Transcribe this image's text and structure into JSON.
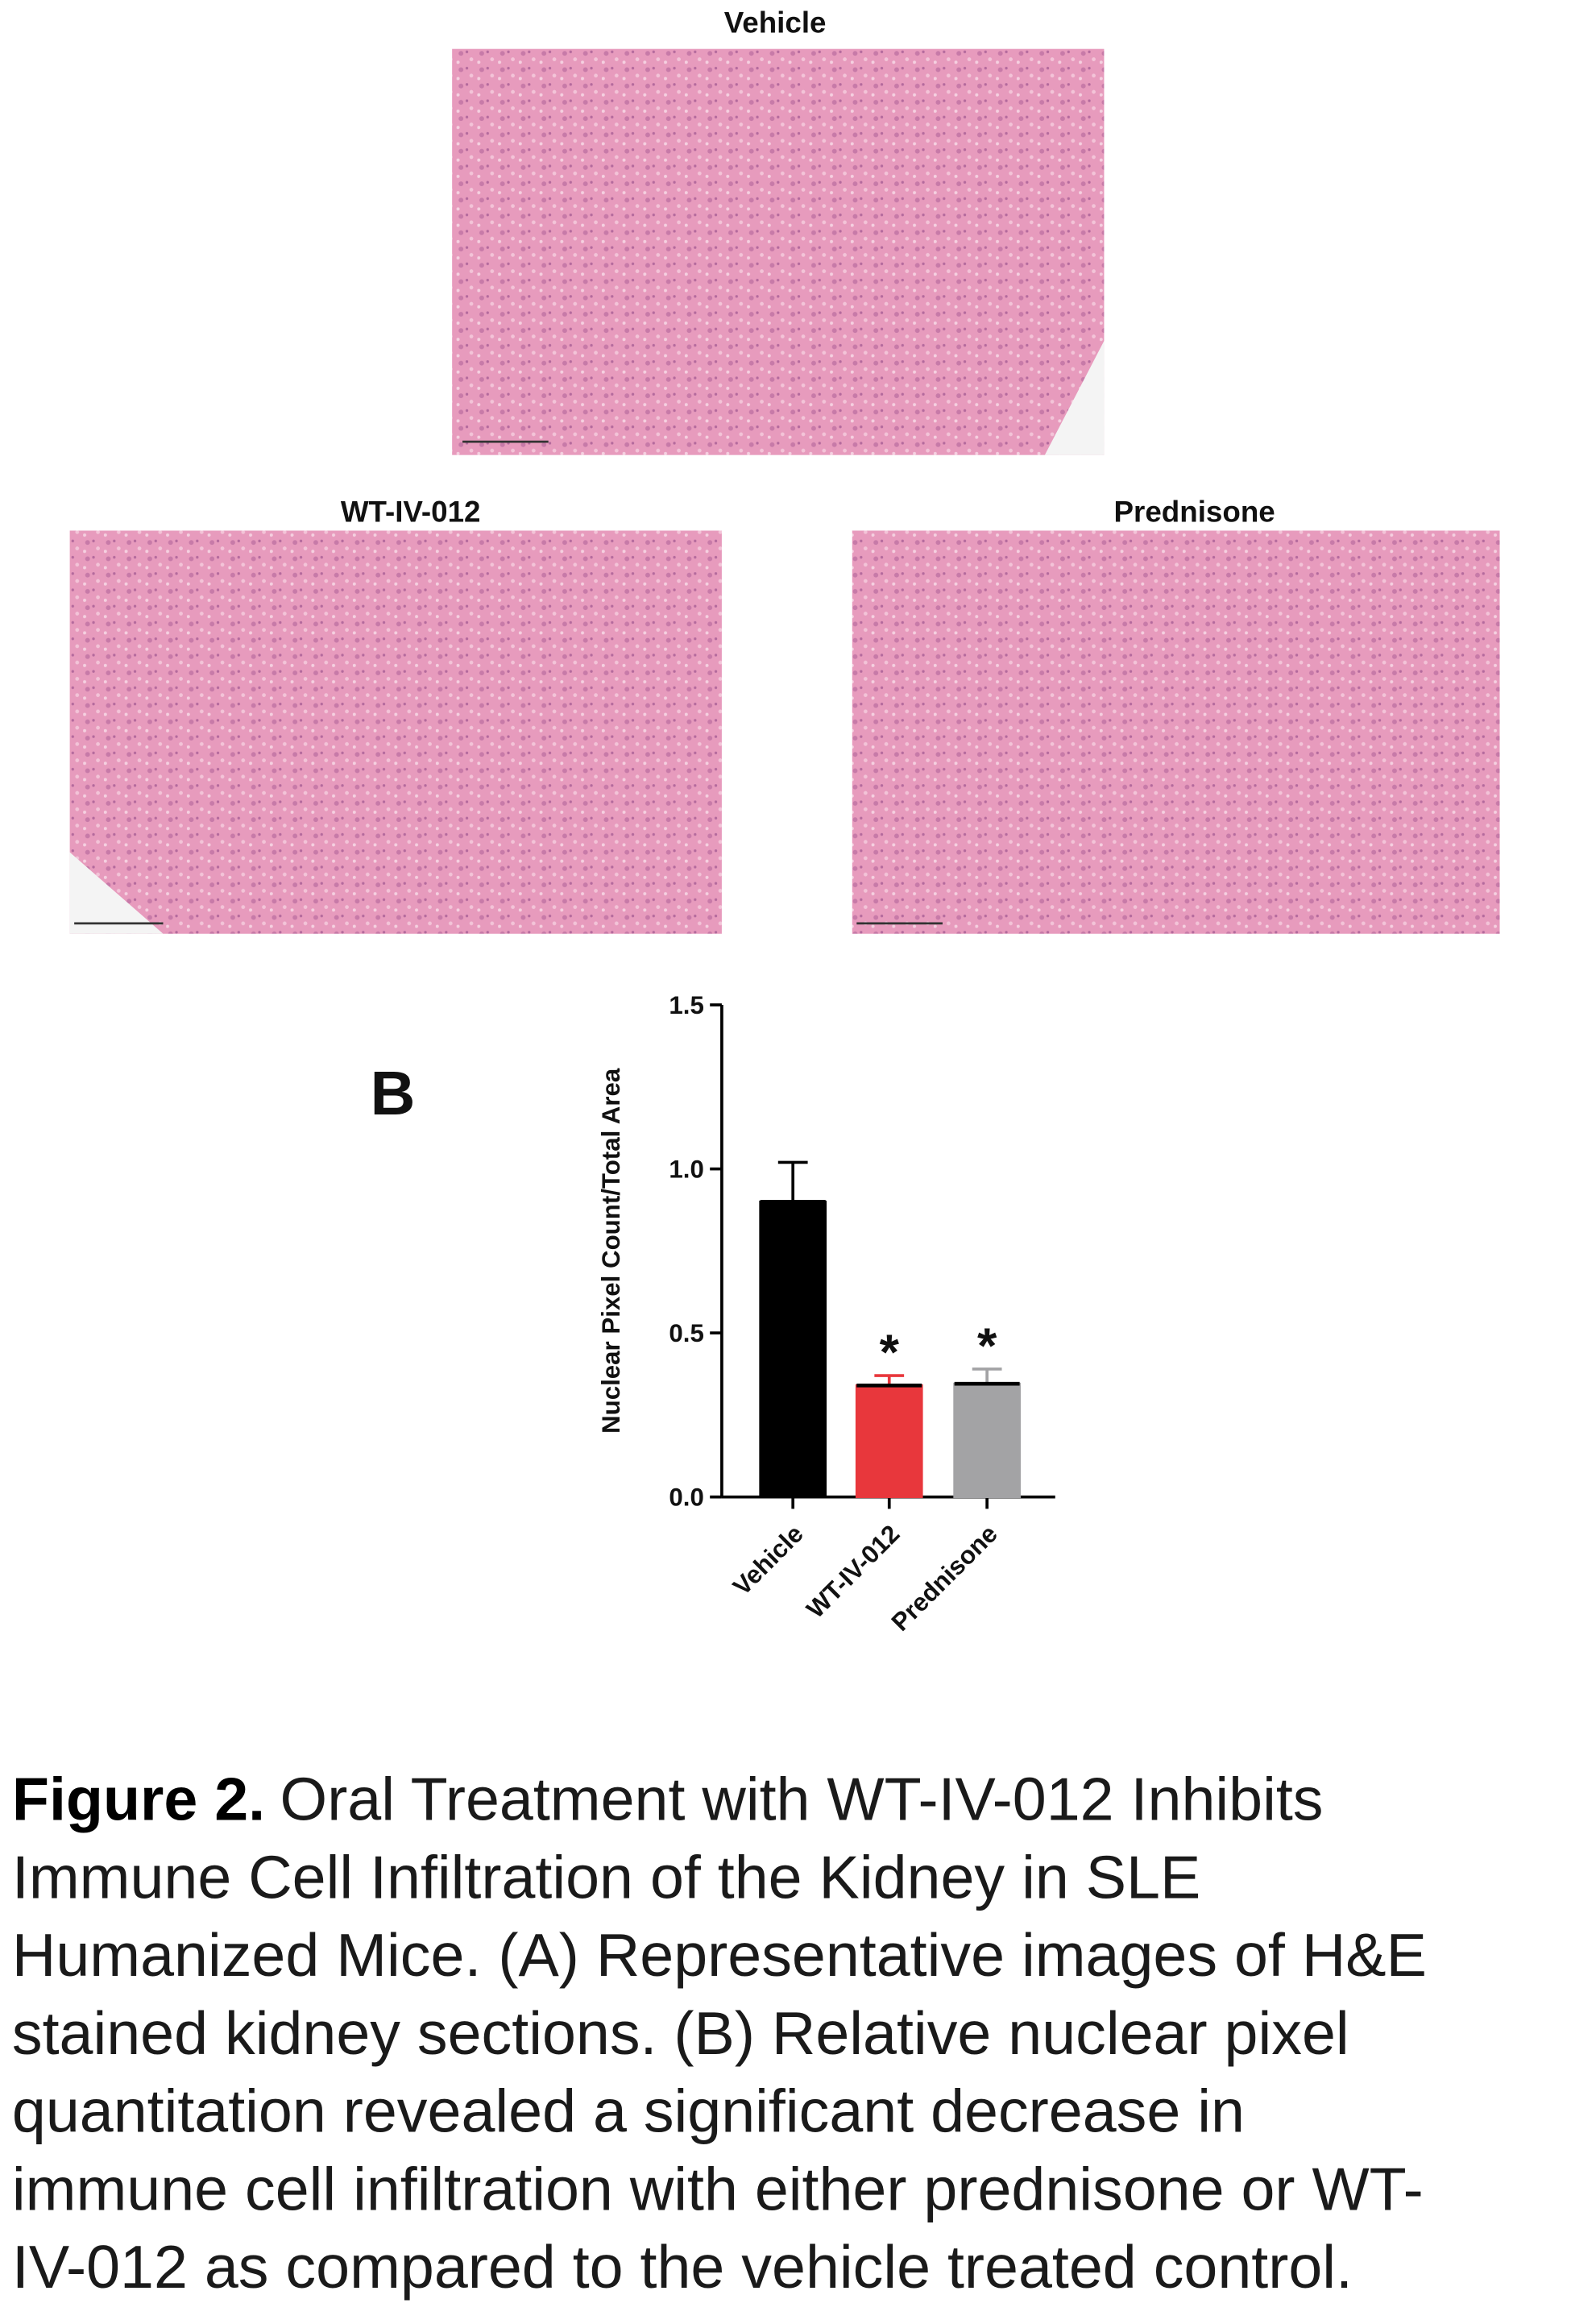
{
  "panels": {
    "vehicle": "Vehicle",
    "wt": "WT-IV-012",
    "prednisone": "Prednisone",
    "label_b": "B"
  },
  "chart_data": {
    "type": "bar",
    "ylabel": "Nuclear Pixel Count/Total Area",
    "categories": [
      "Vehicle",
      "WT-IV-012",
      "Prednisone"
    ],
    "values": [
      0.9,
      0.34,
      0.345
    ],
    "errors": [
      0.12,
      0.03,
      0.045
    ],
    "colors": [
      "#000000",
      "#e8373c",
      "#a3a3a5"
    ],
    "annotations": [
      null,
      "*",
      "*"
    ],
    "ylim": [
      0,
      1.5
    ],
    "yticks": [
      {
        "value": 0,
        "label": "0.0"
      },
      {
        "value": 0.5,
        "label": "0.5"
      },
      {
        "value": 1,
        "label": "1.0"
      },
      {
        "value": 1.5,
        "label": "1.5"
      }
    ]
  },
  "caption": {
    "label": "Figure 2.",
    "lines": [
      "Oral Treatment with WT-IV-012 Inhibits",
      "Immune Cell Infiltration of the Kidney in SLE",
      "Humanized Mice. (A) Representative images of H&E",
      "stained kidney sections. (B) Relative nuclear pixel",
      "quantitation revealed a significant decrease in",
      "immune cell infiltration with either prednisone or WT-",
      "IV-012 as compared to the vehicle treated control."
    ]
  }
}
